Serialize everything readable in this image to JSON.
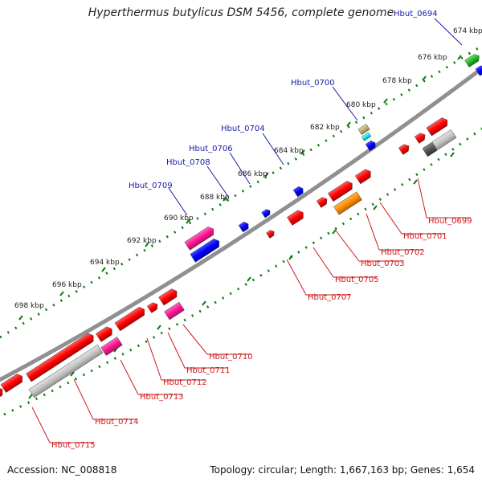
{
  "title": "Hyperthermus butylicus DSM 5456, complete genome",
  "footer": {
    "accession": "Accession: NC_008818",
    "summary": "Topology: circular; Length: 1,667,163 bp; Genes: 1,654"
  },
  "colors": {
    "backbone": "#909090",
    "tick": "#0a7a0a",
    "top_label": "#1a1aaa",
    "bottom_label": "#cc1a1a"
  },
  "scale_labels": [
    "674 kbp",
    "676 kbp",
    "678 kbp",
    "680 kbp",
    "682 kbp",
    "684 kbp",
    "686 kbp",
    "688 kbp",
    "690 kbp",
    "692 kbp",
    "694 kbp",
    "696 kbp",
    "698 kbp"
  ],
  "top_genes": [
    "Hbut_0694",
    "Hbut_0700",
    "Hbut_0704",
    "Hbut_0706",
    "Hbut_0708",
    "Hbut_0709"
  ],
  "bottom_genes": [
    "Hbut_0699",
    "Hbut_0701",
    "Hbut_0702",
    "Hbut_0703",
    "Hbut_0705",
    "Hbut_0707",
    "Hbut_0710",
    "Hbut_0711",
    "Hbut_0712",
    "Hbut_0713",
    "Hbut_0714",
    "Hbut_0715"
  ]
}
